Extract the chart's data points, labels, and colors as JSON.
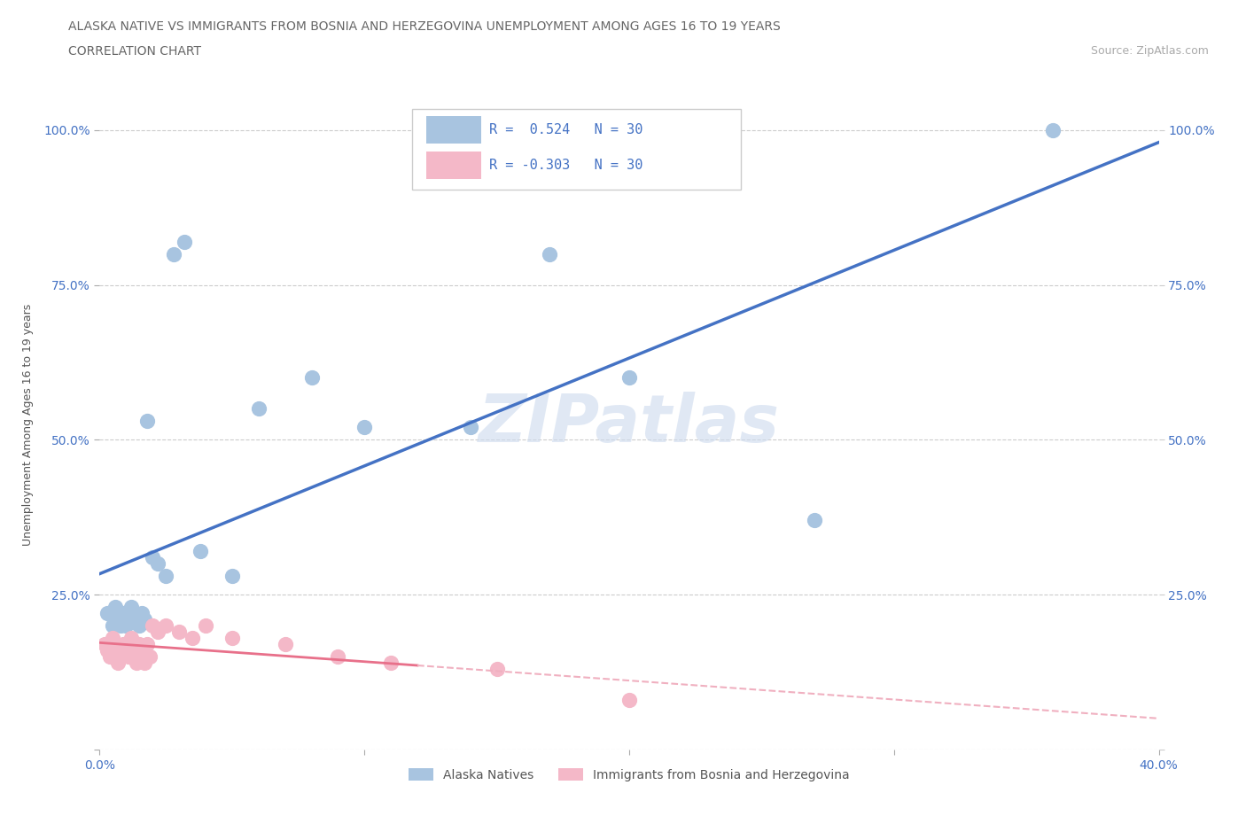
{
  "title_line1": "ALASKA NATIVE VS IMMIGRANTS FROM BOSNIA AND HERZEGOVINA UNEMPLOYMENT AMONG AGES 16 TO 19 YEARS",
  "title_line2": "CORRELATION CHART",
  "source_text": "Source: ZipAtlas.com",
  "ylabel": "Unemployment Among Ages 16 to 19 years",
  "xlim": [
    0.0,
    0.4
  ],
  "ylim": [
    0.0,
    1.05
  ],
  "xticks": [
    0.0,
    0.1,
    0.2,
    0.3,
    0.4
  ],
  "yticks": [
    0.0,
    0.25,
    0.5,
    0.75,
    1.0
  ],
  "yticklabels": [
    "",
    "25.0%",
    "50.0%",
    "75.0%",
    "100.0%"
  ],
  "r_alaska": 0.524,
  "n_alaska": 30,
  "r_bosnia": -0.303,
  "n_bosnia": 30,
  "color_alaska": "#a8c4e0",
  "color_bosnia": "#f4b8c8",
  "trendline_alaska_color": "#4472c4",
  "trendline_bosnia_solid_color": "#e8708a",
  "trendline_bosnia_dashed_color": "#f0b0c0",
  "watermark": "ZIPatlas",
  "alaska_x": [
    0.003,
    0.005,
    0.006,
    0.007,
    0.008,
    0.009,
    0.01,
    0.011,
    0.012,
    0.013,
    0.014,
    0.015,
    0.016,
    0.017,
    0.018,
    0.02,
    0.022,
    0.025,
    0.028,
    0.032,
    0.038,
    0.05,
    0.06,
    0.08,
    0.1,
    0.14,
    0.17,
    0.2,
    0.27,
    0.36
  ],
  "alaska_y": [
    0.22,
    0.2,
    0.23,
    0.21,
    0.2,
    0.22,
    0.2,
    0.21,
    0.23,
    0.22,
    0.21,
    0.2,
    0.22,
    0.21,
    0.53,
    0.31,
    0.3,
    0.28,
    0.8,
    0.82,
    0.32,
    0.28,
    0.55,
    0.6,
    0.52,
    0.52,
    0.8,
    0.6,
    0.37,
    1.0
  ],
  "bosnia_x": [
    0.002,
    0.003,
    0.004,
    0.005,
    0.006,
    0.007,
    0.008,
    0.009,
    0.01,
    0.011,
    0.012,
    0.013,
    0.014,
    0.015,
    0.016,
    0.017,
    0.018,
    0.019,
    0.02,
    0.022,
    0.025,
    0.03,
    0.035,
    0.04,
    0.05,
    0.07,
    0.09,
    0.11,
    0.15,
    0.2
  ],
  "bosnia_y": [
    0.17,
    0.16,
    0.15,
    0.18,
    0.16,
    0.14,
    0.15,
    0.17,
    0.16,
    0.15,
    0.18,
    0.16,
    0.14,
    0.17,
    0.16,
    0.14,
    0.17,
    0.15,
    0.2,
    0.19,
    0.2,
    0.19,
    0.18,
    0.2,
    0.18,
    0.17,
    0.15,
    0.14,
    0.13,
    0.08
  ],
  "legend_alaska_label": "Alaska Natives",
  "legend_bosnia_label": "Immigrants from Bosnia and Herzegovina",
  "grid_color": "#cccccc",
  "tick_color": "#4472c4",
  "title_color": "#666666",
  "source_color": "#aaaaaa"
}
